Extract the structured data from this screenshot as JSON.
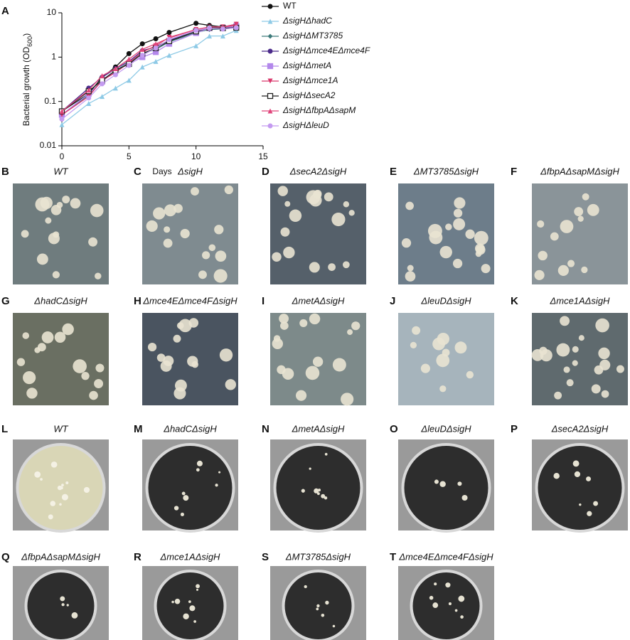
{
  "chart_data": {
    "type": "line",
    "ylabel": [
      "Bacterial growth (OD",
      "600",
      ")"
    ],
    "xlabel": "Days",
    "x": [
      0,
      2,
      3,
      4,
      5,
      6,
      7,
      8,
      10,
      11,
      12,
      13
    ],
    "xlim": [
      0,
      15
    ],
    "xticks": [
      0,
      5,
      10,
      15
    ],
    "ylim": [
      0.01,
      10
    ],
    "yticks": [
      0.01,
      0.1,
      1,
      10
    ],
    "yscale": "log",
    "series": [
      {
        "name": "WT",
        "color": "#111111",
        "marker": "circle",
        "values": [
          0.06,
          0.15,
          0.35,
          0.6,
          1.2,
          2.0,
          2.6,
          3.6,
          5.8,
          5.2,
          4.8,
          5.5
        ]
      },
      {
        "name": "ΔsigHΔhadC",
        "color": "#8ecae6",
        "marker": "triangle",
        "values": [
          0.03,
          0.09,
          0.13,
          0.2,
          0.3,
          0.6,
          0.8,
          1.1,
          1.8,
          3.0,
          3.0,
          4.0
        ]
      },
      {
        "name": "ΔsigHΔMT3785",
        "color": "#3d7a7a",
        "marker": "diamond",
        "values": [
          0.05,
          0.14,
          0.3,
          0.5,
          0.75,
          1.2,
          1.5,
          2.2,
          3.6,
          4.2,
          4.3,
          4.6
        ]
      },
      {
        "name": "ΔsigHΔmce4EΔmce4F",
        "color": "#4b2a8a",
        "marker": "circle",
        "values": [
          0.06,
          0.2,
          0.35,
          0.55,
          0.8,
          1.4,
          1.7,
          2.4,
          3.8,
          4.5,
          4.5,
          4.7
        ]
      },
      {
        "name": "ΔsigHΔmetA",
        "color": "#b388eb",
        "marker": "square",
        "values": [
          0.05,
          0.15,
          0.28,
          0.5,
          0.7,
          1.0,
          1.3,
          2.0,
          3.5,
          4.5,
          4.6,
          5.0
        ]
      },
      {
        "name": "ΔsigHΔmce1A",
        "color": "#d9366b",
        "marker": "triangle-down",
        "values": [
          0.05,
          0.13,
          0.3,
          0.45,
          0.75,
          1.3,
          1.8,
          2.8,
          4.2,
          4.8,
          4.8,
          5.5
        ]
      },
      {
        "name": "ΔsigHΔsecA2",
        "color": "#222222",
        "marker": "open-square",
        "values": [
          0.06,
          0.17,
          0.3,
          0.5,
          0.7,
          1.2,
          1.6,
          2.3,
          3.8,
          4.6,
          4.5,
          4.6
        ]
      },
      {
        "name": "ΔsigHΔfbpAΔsapM",
        "color": "#e0457b",
        "marker": "triangle",
        "values": [
          0.06,
          0.18,
          0.38,
          0.55,
          0.9,
          1.5,
          2.0,
          2.7,
          4.2,
          4.8,
          4.8,
          5.2
        ]
      },
      {
        "name": "ΔsigHΔleuD",
        "color": "#c49bf0",
        "marker": "circle",
        "values": [
          0.04,
          0.12,
          0.25,
          0.4,
          0.65,
          1.1,
          1.6,
          2.5,
          4.0,
          4.5,
          4.3,
          4.6
        ]
      }
    ]
  },
  "panels": [
    {
      "letter": "A"
    },
    {
      "letter": "B",
      "title": "WT"
    },
    {
      "letter": "C",
      "title": "ΔsigH"
    },
    {
      "letter": "D",
      "title": "ΔsecA2ΔsigH"
    },
    {
      "letter": "E",
      "title": "ΔMT3785ΔsigH"
    },
    {
      "letter": "F",
      "title": "ΔfbpAΔsapMΔsigH"
    },
    {
      "letter": "G",
      "title": "ΔhadCΔsigH"
    },
    {
      "letter": "H",
      "title": "Δmce4EΔmce4FΔsigH"
    },
    {
      "letter": "I",
      "title": "ΔmetAΔsigH"
    },
    {
      "letter": "J",
      "title": "ΔleuDΔsigH"
    },
    {
      "letter": "K",
      "title": "Δmce1AΔsigH"
    },
    {
      "letter": "L",
      "title": "WT"
    },
    {
      "letter": "M",
      "title": "ΔhadCΔsigH"
    },
    {
      "letter": "N",
      "title": "ΔmetAΔsigH"
    },
    {
      "letter": "O",
      "title": "ΔleuDΔsigH"
    },
    {
      "letter": "P",
      "title": "ΔsecA2ΔsigH"
    },
    {
      "letter": "Q",
      "title": "ΔfbpAΔsapMΔsigH"
    },
    {
      "letter": "R",
      "title": "Δmce1AΔsigH"
    },
    {
      "letter": "S",
      "title": "ΔMT3785ΔsigH"
    },
    {
      "letter": "T",
      "title": "Δmce4EΔmce4FΔsigH"
    }
  ]
}
